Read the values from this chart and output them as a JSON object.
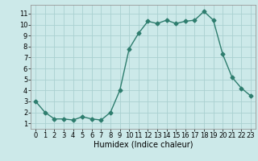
{
  "x": [
    0,
    1,
    2,
    3,
    4,
    5,
    6,
    7,
    8,
    9,
    10,
    11,
    12,
    13,
    14,
    15,
    16,
    17,
    18,
    19,
    20,
    21,
    22,
    23
  ],
  "y": [
    3.0,
    2.0,
    1.4,
    1.4,
    1.3,
    1.6,
    1.4,
    1.3,
    2.0,
    4.0,
    7.8,
    9.2,
    10.3,
    10.1,
    10.4,
    10.1,
    10.3,
    10.4,
    11.2,
    10.4,
    7.3,
    5.2,
    4.2,
    3.5
  ],
  "line_color": "#2e7d6e",
  "marker": "D",
  "markersize": 2.5,
  "linewidth": 1.0,
  "bg_color": "#cce9e9",
  "grid_color": "#aad0d0",
  "xlabel": "Humidex (Indice chaleur)",
  "xlabel_fontsize": 7,
  "tick_fontsize": 6,
  "xlim": [
    -0.5,
    23.5
  ],
  "ylim": [
    0.5,
    11.8
  ],
  "yticks": [
    1,
    2,
    3,
    4,
    5,
    6,
    7,
    8,
    9,
    10,
    11
  ],
  "xticks": [
    0,
    1,
    2,
    3,
    4,
    5,
    6,
    7,
    8,
    9,
    10,
    11,
    12,
    13,
    14,
    15,
    16,
    17,
    18,
    19,
    20,
    21,
    22,
    23
  ]
}
